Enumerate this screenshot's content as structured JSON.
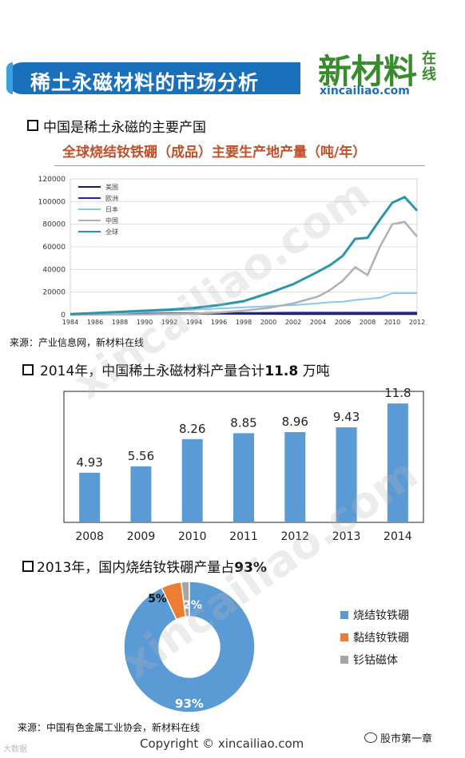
{
  "header": {
    "title": "稀土永磁材料的市场分析",
    "logo_text": "新材料",
    "logo_side": "在线",
    "logo_url": "xincailiao.com"
  },
  "sections": [
    {
      "label": "中国是稀土永磁的主要产国"
    },
    {
      "label_prefix": "2014年，中国稀土永磁材料产量合计",
      "label_bold": "11.8",
      "label_suffix": " 万吨"
    },
    {
      "label_prefix": "2013年，国内烧结钕铁硼产量占",
      "label_bold": "93%"
    }
  ],
  "source_1": "来源：产业信息网，新材料在线",
  "source_3": "来源：中国有色金属工业协会，新材料在线",
  "watermark": "xincailiao.com",
  "footer": "Copyright © xincailiao.com",
  "wechat": "股市第一章",
  "corner_mark": "大数据",
  "chart_data": [
    {
      "type": "line",
      "title": "全球烧结钕铁硼（成品）主要生产地产量（吨/年）",
      "x_ticks": [
        "1984",
        "1986",
        "1988",
        "1990",
        "1992",
        "1994",
        "1996",
        "1998",
        "2000",
        "2002",
        "2004",
        "2006",
        "2008",
        "2010",
        "2012"
      ],
      "y_ticks": [
        0,
        20000,
        40000,
        60000,
        80000,
        100000,
        120000
      ],
      "xlim": [
        1984,
        2012
      ],
      "ylim": [
        0,
        120000
      ],
      "grid": "horizontal",
      "legend_position": "top-left",
      "x": [
        1984,
        1986,
        1988,
        1990,
        1992,
        1994,
        1996,
        1998,
        2000,
        2002,
        2004,
        2005,
        2006,
        2007,
        2008,
        2009,
        2010,
        2011,
        2012
      ],
      "series": [
        {
          "name": "美国",
          "color": "#1a1a5a",
          "values": [
            0,
            300,
            500,
            700,
            800,
            900,
            900,
            800,
            700,
            600,
            500,
            500,
            500,
            500,
            500,
            500,
            500,
            500,
            500
          ]
        },
        {
          "name": "欧洲",
          "color": "#2222aa",
          "values": [
            0,
            400,
            700,
            1000,
            1200,
            1400,
            1500,
            1600,
            1700,
            1800,
            1800,
            1800,
            1800,
            1800,
            1800,
            1800,
            1800,
            1800,
            1800
          ]
        },
        {
          "name": "日本",
          "color": "#88c8f0",
          "values": [
            200,
            800,
            1500,
            2500,
            3500,
            4500,
            5500,
            6500,
            7500,
            8500,
            10000,
            11000,
            11500,
            13000,
            14000,
            15000,
            19000,
            19000,
            19000
          ]
        },
        {
          "name": "中国",
          "color": "#b0b0b0",
          "values": [
            0,
            0,
            100,
            300,
            600,
            1000,
            2000,
            3500,
            6000,
            10000,
            16000,
            22000,
            30000,
            42000,
            35000,
            60000,
            80000,
            82000,
            69000
          ]
        },
        {
          "name": "全球",
          "color": "#2a96a8",
          "values": [
            500,
            1500,
            2500,
            3500,
            4500,
            6000,
            8500,
            12000,
            19000,
            27000,
            38000,
            44000,
            52000,
            67000,
            68000,
            84000,
            99000,
            104000,
            92000
          ]
        }
      ]
    },
    {
      "type": "bar",
      "categories": [
        "2008",
        "2009",
        "2010",
        "2011",
        "2012",
        "2013",
        "2014"
      ],
      "values": [
        4.93,
        5.56,
        8.26,
        8.85,
        8.96,
        9.43,
        11.8
      ],
      "value_labels": [
        "4.93",
        "5.56",
        "8.26",
        "8.85",
        "8.96",
        "9.43",
        "11.8"
      ],
      "ylim": [
        0,
        13
      ],
      "color": "#5b9bd5"
    },
    {
      "type": "pie",
      "style": "donut",
      "labels": [
        "烧结钕铁硼",
        "黏结钕铁硼",
        "钐钴磁体"
      ],
      "values": [
        93,
        5,
        2
      ],
      "value_labels": [
        "93%",
        "5%",
        "2%"
      ],
      "colors": [
        "#5b9bd5",
        "#ed7d31",
        "#a5a5a5"
      ],
      "legend_position": "right"
    }
  ]
}
